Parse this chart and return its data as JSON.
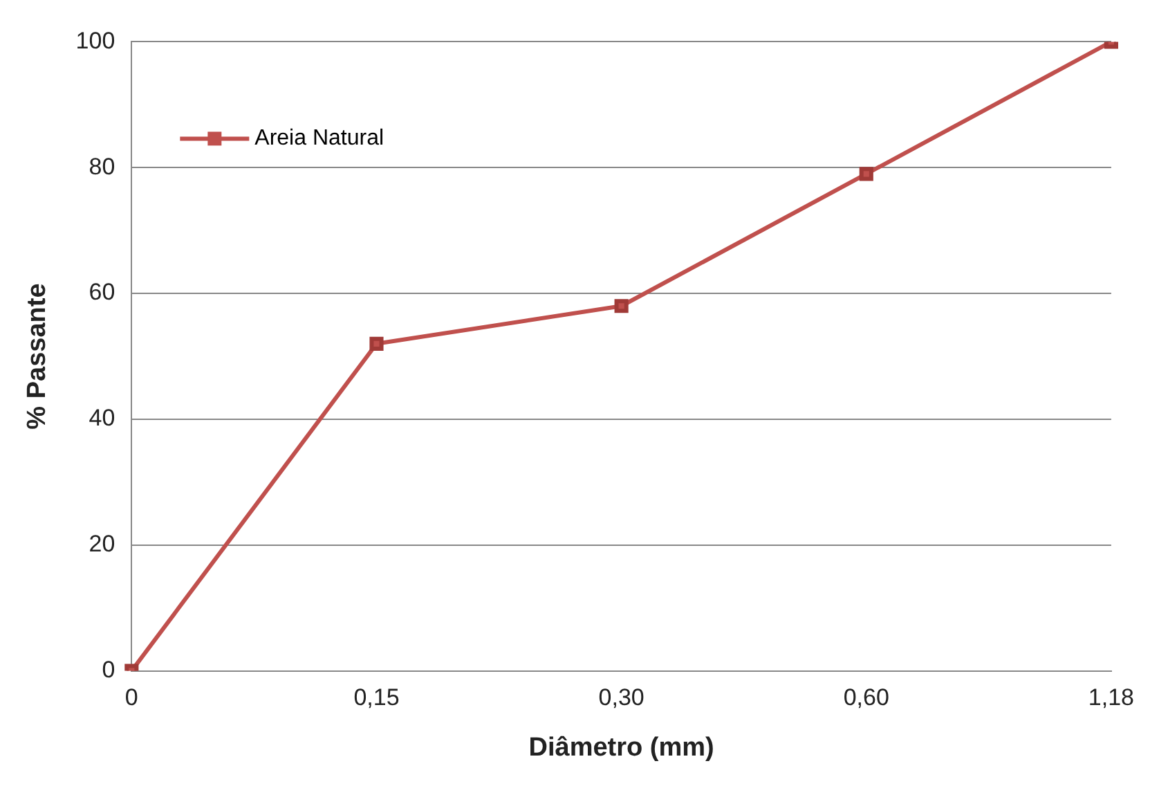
{
  "chart_data": {
    "type": "line",
    "xlabel": "Diâmetro (mm)",
    "ylabel": "% Passante",
    "categories": [
      "0",
      "0,15",
      "0,30",
      "0,60",
      "1,18"
    ],
    "series": [
      {
        "name": "Areia Natural",
        "color": "#c0504d",
        "values": [
          0,
          52,
          58,
          79,
          100
        ]
      }
    ],
    "ylim": [
      0,
      100
    ],
    "yticks": [
      0,
      20,
      40,
      60,
      80,
      100
    ],
    "grid": "y",
    "legend": "top left",
    "marker": "square",
    "line_style": "solid"
  }
}
